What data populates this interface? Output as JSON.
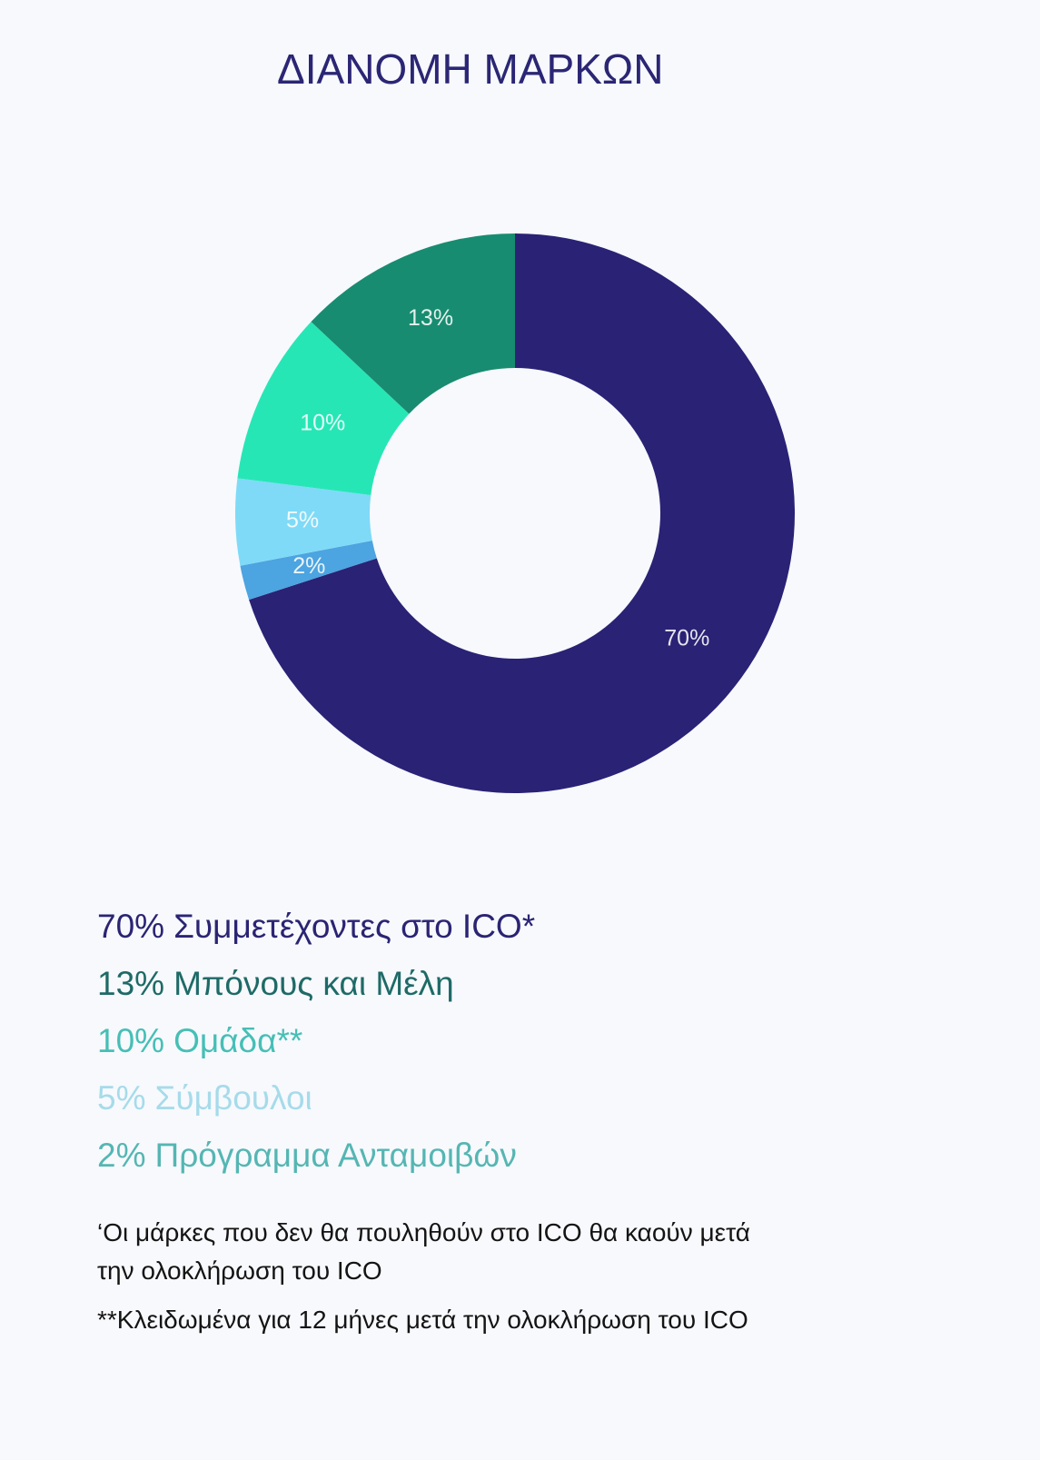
{
  "page": {
    "background": "#f7f9fd",
    "title_color": "#2b2674"
  },
  "chart_data": {
    "type": "pie",
    "donut": true,
    "title": "ΔΙΑΝΟΜΗ ΜΑΡΚΩΝ",
    "slices": [
      {
        "value": 70,
        "label": "70%",
        "color": "#2a2275"
      },
      {
        "value": 2,
        "label": "2%",
        "color": "#4ca4e0"
      },
      {
        "value": 5,
        "label": "5%",
        "color": "#7fdaf7"
      },
      {
        "value": 10,
        "label": "10%",
        "color": "#27e6b6"
      },
      {
        "value": 13,
        "label": "13%",
        "color": "#188c70"
      }
    ],
    "legend": [
      {
        "value_label": "70%",
        "name": "Συμμετέχοντες στο ICO*",
        "color": "#2b2473"
      },
      {
        "value_label": "13%",
        "name": "Μπόνους και Μέλη",
        "color": "#1e6a67"
      },
      {
        "value_label": "10%",
        "name": "Ομάδα**",
        "color": "#46bfb6"
      },
      {
        "value_label": "5%",
        "name": "Σύμβουλοι",
        "color": "#a6dbea"
      },
      {
        "value_label": "2%",
        "name": "Πρόγραμμα Ανταμοιβών",
        "color": "#55b6b3"
      }
    ]
  },
  "footnotes": {
    "note1_line1": "‘Οι μάρκες που δεν θα πουληθούν στο ICO θα καούν μετά",
    "note1_line2": "την ολοκλήρωση του ICO",
    "note2": "**Κλειδωμένα για 12 μήνες μετά την ολοκλήρωση του ICO"
  }
}
